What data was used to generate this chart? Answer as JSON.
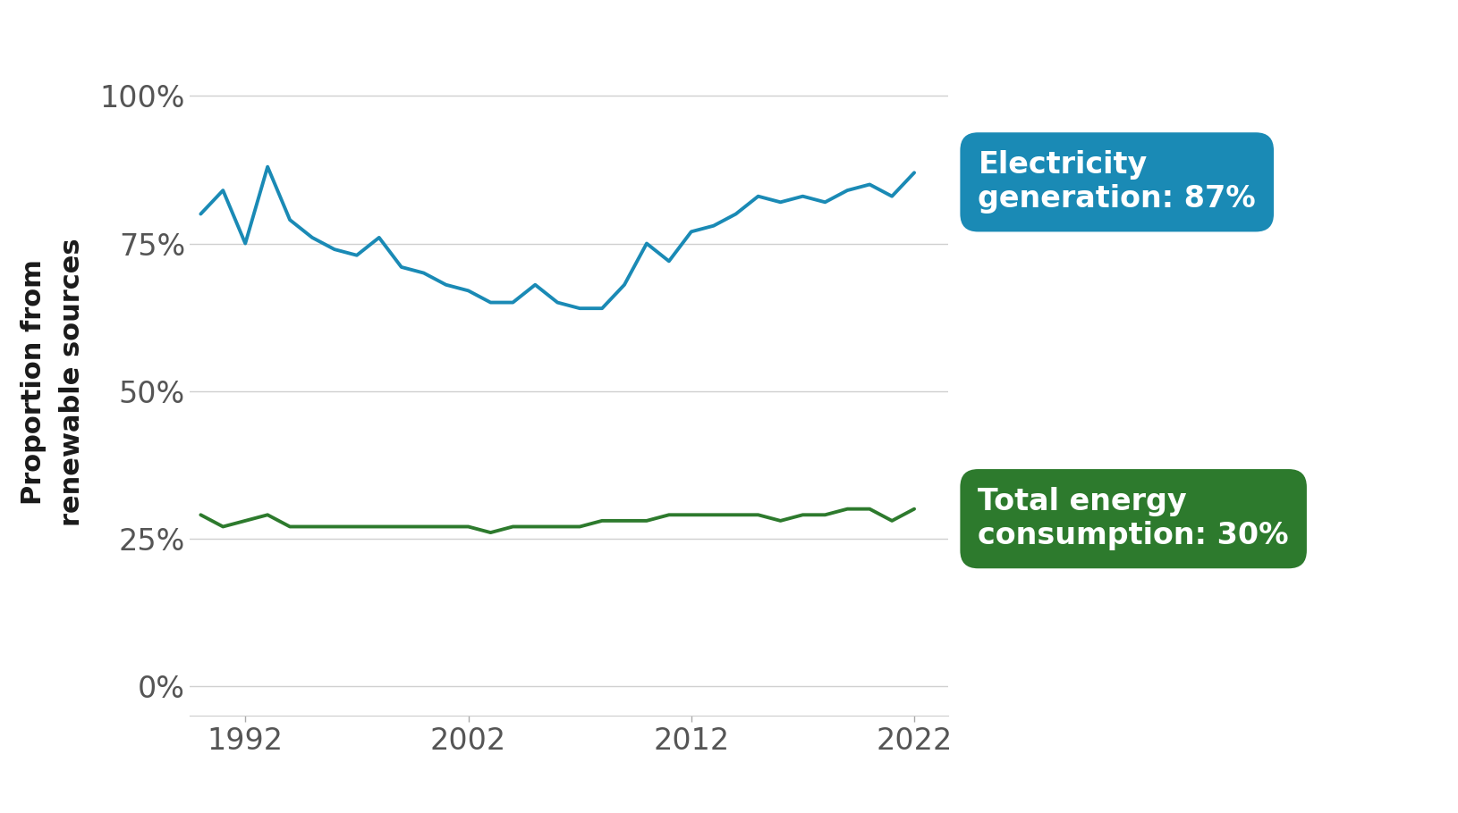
{
  "years": [
    1990,
    1991,
    1992,
    1993,
    1994,
    1995,
    1996,
    1997,
    1998,
    1999,
    2000,
    2001,
    2002,
    2003,
    2004,
    2005,
    2006,
    2007,
    2008,
    2009,
    2010,
    2011,
    2012,
    2013,
    2014,
    2015,
    2016,
    2017,
    2018,
    2019,
    2020,
    2021,
    2022
  ],
  "electricity": [
    80,
    84,
    75,
    88,
    79,
    76,
    74,
    73,
    76,
    71,
    70,
    68,
    67,
    65,
    65,
    68,
    65,
    64,
    64,
    68,
    75,
    72,
    77,
    78,
    80,
    83,
    82,
    83,
    82,
    84,
    85,
    83,
    87
  ],
  "energy": [
    29,
    27,
    28,
    29,
    27,
    27,
    27,
    27,
    27,
    27,
    27,
    27,
    27,
    26,
    27,
    27,
    27,
    27,
    28,
    28,
    28,
    29,
    29,
    29,
    29,
    29,
    28,
    29,
    29,
    30,
    30,
    28,
    30
  ],
  "electricity_color": "#1a8ab5",
  "energy_color": "#2d7a2d",
  "electricity_label": "Electricity\ngeneration: 87%",
  "energy_label": "Total energy\nconsumption: 30%",
  "electricity_box_color": "#1a8ab5",
  "energy_box_color": "#2d7a2d",
  "ylabel": "Proportion from\nrenewable sources",
  "yticks": [
    0,
    25,
    50,
    75,
    100
  ],
  "ytick_labels": [
    "0%",
    "25%",
    "50%",
    "75%",
    "100%"
  ],
  "xtick_labels": [
    "1992",
    "2002",
    "2012",
    "2022"
  ],
  "xtick_positions": [
    1992,
    2002,
    2012,
    2022
  ],
  "background_color": "#ffffff",
  "grid_color": "#d0d0d0",
  "ylim": [
    -5,
    108
  ],
  "xlim": [
    1989.5,
    2023.5
  ]
}
